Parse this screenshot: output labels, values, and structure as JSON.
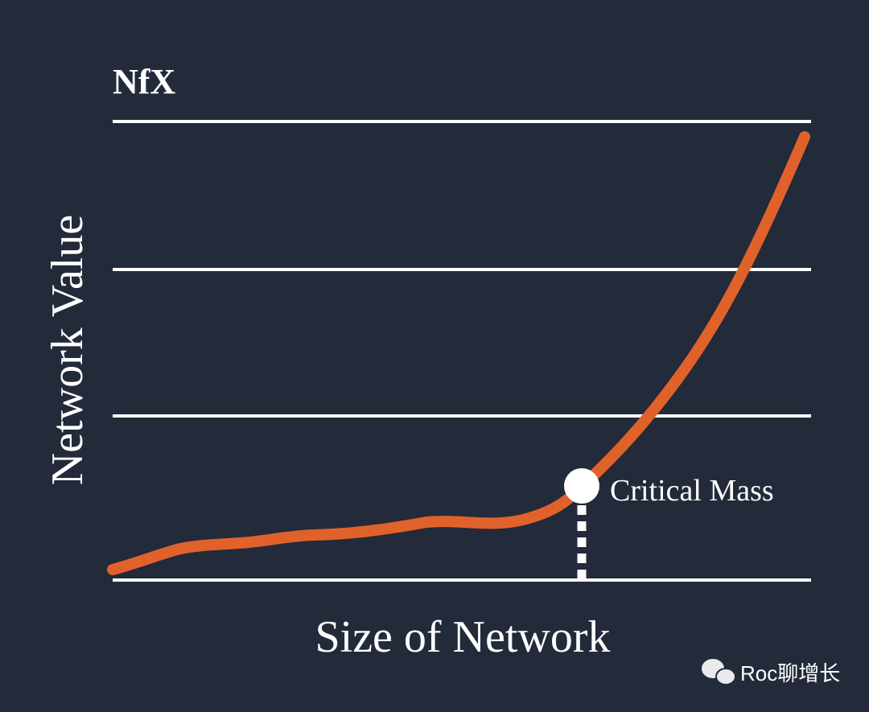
{
  "logo": "NfX",
  "y_axis_label": "Network Value",
  "x_axis_label": "Size of Network",
  "annotation": "Critical Mass",
  "watermark": "Roc聊增长"
}
